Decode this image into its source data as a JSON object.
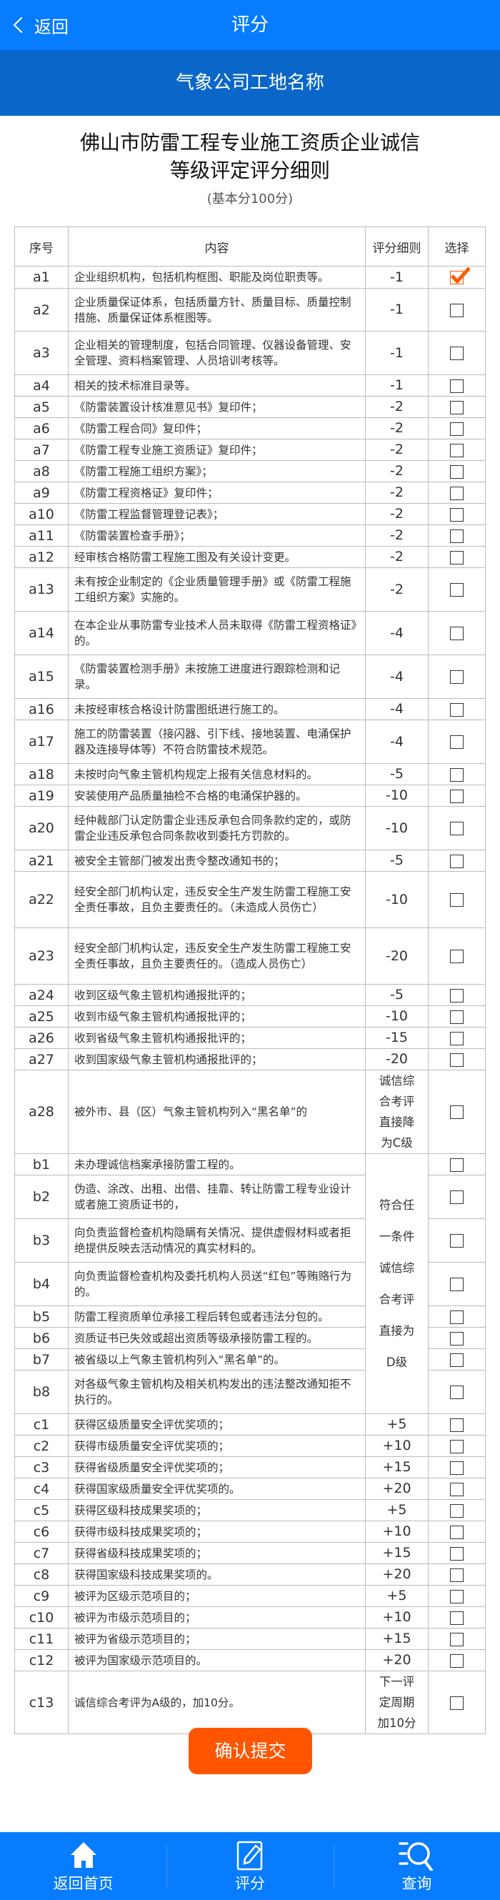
{
  "header": {
    "back_label": "返回",
    "title": "评分"
  },
  "site_name": "气象公司工地名称",
  "document": {
    "title_line1": "佛山市防雷工程专业施工资质企业诚信",
    "title_line2": "等级评定评分细则",
    "subtitle": "(基本分100分)"
  },
  "table": {
    "columns": [
      "序号",
      "内容",
      "评分细则",
      "选择"
    ],
    "rows": [
      {
        "id": "a1",
        "text": "企业组织机构，包括机构框图、职能及岗位职责等。",
        "score": "-1",
        "checked": true
      },
      {
        "id": "a2",
        "text": "企业质量保证体系，包括质量方针、质量目标、质量控制措施、质量保证体系框图等。",
        "score": "-1",
        "checked": false
      },
      {
        "id": "a3",
        "text": "企业相关的管理制度，包括合同管理、仪器设备管理、安全管理、资料档案管理、人员培训考核等。",
        "score": "-1",
        "checked": false
      },
      {
        "id": "a4",
        "text": "相关的技术标准目录等。",
        "score": "-1",
        "checked": false
      },
      {
        "id": "a5",
        "text": "《防雷装置设计核准意见书》复印件；",
        "score": "-2",
        "checked": false
      },
      {
        "id": "a6",
        "text": "《防雷工程合同》复印件；",
        "score": "-2",
        "checked": false
      },
      {
        "id": "a7",
        "text": "《防雷工程专业施工资质证》复印件；",
        "score": "-2",
        "checked": false
      },
      {
        "id": "a8",
        "text": "《防雷工程施工组织方案》；",
        "score": "-2",
        "checked": false
      },
      {
        "id": "a9",
        "text": "《防雷工程资格证》复印件；",
        "score": "-2",
        "checked": false
      },
      {
        "id": "a10",
        "text": "《防雷工程监督管理登记表》；",
        "score": "-2",
        "checked": false
      },
      {
        "id": "a11",
        "text": "《防雷装置检查手册》；",
        "score": "-2",
        "checked": false
      },
      {
        "id": "a12",
        "text": "经审核合格防雷工程施工图及有关设计变更。",
        "score": "-2",
        "checked": false
      },
      {
        "id": "a13",
        "text": "未有按企业制定的《企业质量管理手册》或《防雷工程施工组织方案》实施的。",
        "score": "-2",
        "checked": false
      },
      {
        "id": "a14",
        "text": "在本企业从事防雷专业技术人员未取得《防雷工程资格证》的。",
        "score": "-4",
        "checked": false
      },
      {
        "id": "a15",
        "text": "《防雷装置检测手册》未按施工进度进行跟踪检测和记录。",
        "score": "-4",
        "checked": false
      },
      {
        "id": "a16",
        "text": "未按经审核合格设计防雷图纸进行施工的。",
        "score": "-4",
        "checked": false
      },
      {
        "id": "a17",
        "text": "施工的防雷装置（接闪器、引下线、接地装置、电涌保护器及连接导体等）不符合防雷技术规范。",
        "score": "-4",
        "checked": false
      },
      {
        "id": "a18",
        "text": "未按时向气象主管机构规定上报有关信息材料的。",
        "score": "-5",
        "checked": false
      },
      {
        "id": "a19",
        "text": "安装使用产品质量抽检不合格的电涌保护器的。",
        "score": "-10",
        "checked": false
      },
      {
        "id": "a20",
        "text": "经仲裁部门认定防雷企业违反承包合同条款约定的，或防雷企业违反承包合同条款收到委托方罚款的。",
        "score": "-10",
        "checked": false
      },
      {
        "id": "a21",
        "text": "被安全主管部门被发出责令整改通知书的；",
        "score": "-5",
        "checked": false
      },
      {
        "id": "a22",
        "text": "经安全部门机构认定，违反安全生产发生防雷工程施工安全责任事故，且负主要责任的。（未造成人员伤亡）",
        "score": "-10",
        "checked": false
      },
      {
        "id": "a23",
        "text": "经安全部门机构认定，违反安全生产发生防雷工程施工安全责任事故，且负主要责任的。（造成人员伤亡）",
        "score": "-20",
        "checked": false
      },
      {
        "id": "a24",
        "text": "收到区级气象主管机构通报批评的；",
        "score": "-5",
        "checked": false
      },
      {
        "id": "a25",
        "text": "收到市级气象主管机构通报批评的；",
        "score": "-10",
        "checked": false
      },
      {
        "id": "a26",
        "text": "收到省级气象主管机构通报批评的；",
        "score": "-15",
        "checked": false
      },
      {
        "id": "a27",
        "text": "收到国家级气象主管机构通报批评的；",
        "score": "-20",
        "checked": false
      },
      {
        "id": "a28",
        "text": "被外市、县（区）气象主管机构列入“黑名单”的",
        "score": "诚信综合考评直接降为C级",
        "checked": false
      },
      {
        "id": "b1",
        "text": "未办理诚信档案承接防雷工程的。",
        "score": "符合任一条件诚信综合考评直接为D级",
        "checked": false
      },
      {
        "id": "b2",
        "text": "伪造、涂改、出租、出借、挂靠、转让防雷工程专业设计或者施工资质证书的，",
        "checked": false
      },
      {
        "id": "b3",
        "text": "向负责监督检查机构隐瞒有关情况、提供虚假材料或者拒绝提供反映去活动情况的真实材料的。",
        "checked": false
      },
      {
        "id": "b4",
        "text": "向负责监督检查机构及委托机构人员送“红包”等贿赂行为的。",
        "checked": false
      },
      {
        "id": "b5",
        "text": "防雷工程资质单位承接工程后转包或者违法分包的。",
        "checked": false
      },
      {
        "id": "b6",
        "text": "资质证书已失效或超出资质等级承接防雷工程的。",
        "checked": false
      },
      {
        "id": "b7",
        "text": "被省级以上气象主管机构列入“黑名单”的。",
        "checked": false
      },
      {
        "id": "b8",
        "text": "对各级气象主管机构及相关机构发出的违法整改通知拒不执行的。",
        "checked": false
      },
      {
        "id": "c1",
        "text": "获得区级质量安全评优奖项的；",
        "score": "+5",
        "checked": false
      },
      {
        "id": "c2",
        "text": "获得市级质量安全评优奖项的；",
        "score": "+10",
        "checked": false
      },
      {
        "id": "c3",
        "text": "获得省级质量安全评优奖项的；",
        "score": "+15",
        "checked": false
      },
      {
        "id": "c4",
        "text": "获得国家级质量安全评优奖项的。",
        "score": "+20",
        "checked": false
      },
      {
        "id": "c5",
        "text": "获得区级科技成果奖项的；",
        "score": "+5",
        "checked": false
      },
      {
        "id": "c6",
        "text": "获得市级科技成果奖项的；",
        "score": "+10",
        "checked": false
      },
      {
        "id": "c7",
        "text": "获得省级科技成果奖项的；",
        "score": "+15",
        "checked": false
      },
      {
        "id": "c8",
        "text": "获得国家级科技成果奖项的。",
        "score": "+20",
        "checked": false
      },
      {
        "id": "c9",
        "text": "被评为区级示范项目的；",
        "score": "+5",
        "checked": false
      },
      {
        "id": "c10",
        "text": "被评为市级示范项目的；",
        "score": "+10",
        "checked": false
      },
      {
        "id": "c11",
        "text": "被评为省级示范项目的；",
        "score": "+15",
        "checked": false
      },
      {
        "id": "c12",
        "text": "被评为国家级示范项目的。",
        "score": "+20",
        "checked": false
      },
      {
        "id": "c13",
        "text": "诚信综合考评为A级的，加10分。",
        "score": "下一评定周期加10分",
        "checked": false
      }
    ]
  },
  "submit_label": "确认提交",
  "bottom_nav": [
    {
      "label": "返回首页",
      "icon": "home-icon"
    },
    {
      "label": "评分",
      "icon": "edit-icon"
    },
    {
      "label": "查询",
      "icon": "search-list-icon"
    }
  ],
  "colors": {
    "nav_bar": "#077cff",
    "sub_bar": "#0a67c9",
    "accent": "#ff5500",
    "checked": "#ff5a00"
  }
}
